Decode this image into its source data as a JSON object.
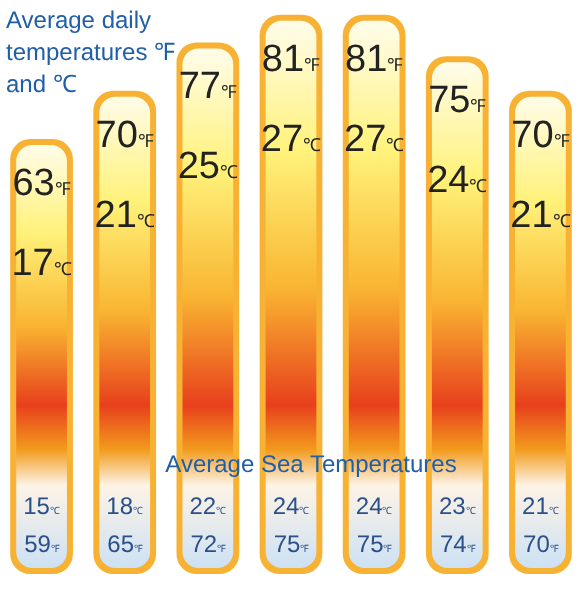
{
  "chart_data": {
    "type": "bar",
    "title": "Average daily temperatures ℉ and ℃",
    "categories": [
      null,
      null,
      null,
      null,
      null,
      null,
      null
    ],
    "values": [
      63,
      70,
      77,
      81,
      81,
      75,
      70
    ],
    "color": "#f7b233",
    "value_labels": [
      "63$_{℉}$",
      "70$_{℉}$",
      "77$_{℉}$",
      "81$_{℉}$",
      "81$_{℉}$",
      "75$_{℉}$",
      "70$_{℉}$"
    ],
    "annotations": [
      "Average Sea Temperatures",
      "17$_{℃}$",
      "15$_{℃}$",
      "59$_{℉}$",
      "21$_{℃}$",
      "18$_{℃}$",
      "65$_{℉}$",
      "25$_{℃}$",
      "22$_{℃}$",
      "72$_{℉}$",
      "27$_{℃}$",
      "24$_{℃}$",
      "75$_{℉}$",
      "27$_{℃}$",
      "24$_{℃}$",
      "75$_{℉}$",
      "24$_{℃}$",
      "23$_{℃}$",
      "74$_{℉}$",
      "21$_{℃}$",
      "21$_{℃}$",
      "70$_{℉}$"
    ],
    "legend": false
  }
}
